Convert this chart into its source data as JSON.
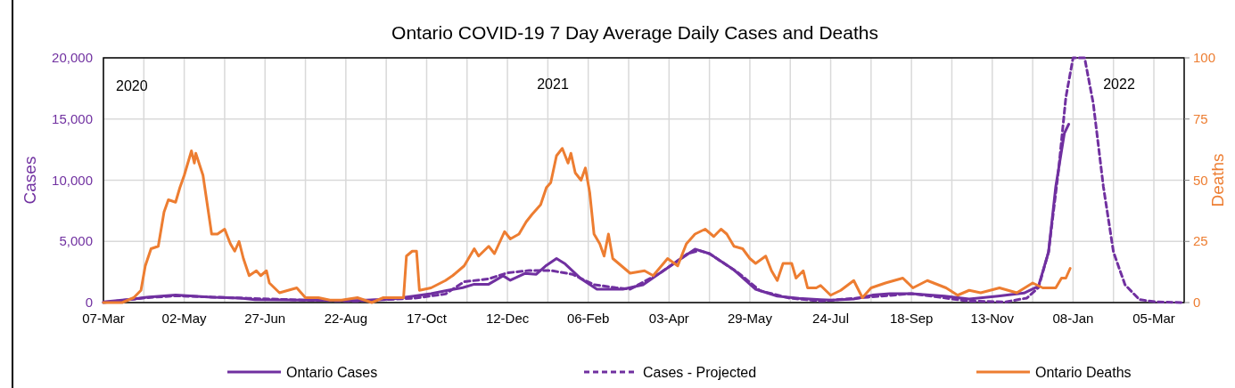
{
  "chart_data": {
    "type": "line",
    "title": "Ontario COVID-19 7 Day Average Daily Cases and Deaths",
    "ylabel": "Cases",
    "y2label": "Deaths",
    "annotations": [
      "2020",
      "2021",
      "2022"
    ],
    "grid": true,
    "legend": "bottom",
    "xlim": [
      "2020-03-07",
      "2022-03-26"
    ],
    "xticks": [
      {
        "value": "2020-03-07",
        "label": "07-Mar"
      },
      {
        "value": "2020-04-04",
        "label": null
      },
      {
        "value": "2020-05-02",
        "label": "02-May"
      },
      {
        "value": "2020-05-30",
        "label": null
      },
      {
        "value": "2020-06-27",
        "label": "27-Jun"
      },
      {
        "value": "2020-07-25",
        "label": null
      },
      {
        "value": "2020-08-22",
        "label": "22-Aug"
      },
      {
        "value": "2020-09-19",
        "label": null
      },
      {
        "value": "2020-10-17",
        "label": "17-Oct"
      },
      {
        "value": "2020-11-14",
        "label": null
      },
      {
        "value": "2020-12-12",
        "label": "12-Dec"
      },
      {
        "value": "2021-01-09",
        "label": null
      },
      {
        "value": "2021-02-06",
        "label": "06-Feb"
      },
      {
        "value": "2021-03-06",
        "label": null
      },
      {
        "value": "2021-04-03",
        "label": "03-Apr"
      },
      {
        "value": "2021-05-01",
        "label": null
      },
      {
        "value": "2021-05-29",
        "label": "29-May"
      },
      {
        "value": "2021-06-26",
        "label": null
      },
      {
        "value": "2021-07-24",
        "label": "24-Jul"
      },
      {
        "value": "2021-08-21",
        "label": null
      },
      {
        "value": "2021-09-18",
        "label": "18-Sep"
      },
      {
        "value": "2021-10-16",
        "label": null
      },
      {
        "value": "2021-11-13",
        "label": "13-Nov"
      },
      {
        "value": "2021-12-11",
        "label": null
      },
      {
        "value": "2022-01-08",
        "label": "08-Jan"
      },
      {
        "value": "2022-02-05",
        "label": null
      },
      {
        "value": "2022-03-05",
        "label": "05-Mar"
      }
    ],
    "ylim": [
      0,
      20000
    ],
    "yticks": [
      {
        "value": 0,
        "label": "0"
      },
      {
        "value": 5000,
        "label": "5,000"
      },
      {
        "value": 10000,
        "label": "10,000"
      },
      {
        "value": 15000,
        "label": "15,000"
      },
      {
        "value": 20000,
        "label": "20,000"
      }
    ],
    "y2lim": [
      0,
      100
    ],
    "y2ticks": [
      0,
      25,
      50,
      75,
      100
    ],
    "series": [
      {
        "name": "Ontario Cases",
        "color": "#7030a0",
        "x": [
          "2020-03-07",
          "2020-03-28",
          "2020-04-06",
          "2020-04-26",
          "2020-05-21",
          "2020-06-10",
          "2020-06-20",
          "2020-07-25",
          "2020-08-29",
          "2020-09-23",
          "2020-10-08",
          "2020-10-20",
          "2020-10-30",
          "2020-11-11",
          "2020-11-19",
          "2020-11-29",
          "2020-12-09",
          "2020-12-14",
          "2020-12-24",
          "2021-01-01",
          "2021-01-08",
          "2021-01-15",
          "2021-01-21",
          "2021-02-01",
          "2021-02-12",
          "2021-02-22",
          "2021-03-02",
          "2021-03-16",
          "2021-03-28",
          "2021-04-09",
          "2021-04-21",
          "2021-05-01",
          "2021-05-18",
          "2021-06-02",
          "2021-06-17",
          "2021-07-02",
          "2021-07-17",
          "2021-07-25",
          "2021-08-09",
          "2021-08-22",
          "2021-09-03",
          "2021-09-18",
          "2021-10-11",
          "2021-10-28",
          "2021-11-17",
          "2021-12-05",
          "2021-12-15",
          "2021-12-22",
          "2021-12-27",
          "2022-01-02",
          "2022-01-05"
        ],
        "values": [
          50,
          290,
          440,
          610,
          440,
          370,
          240,
          200,
          170,
          290,
          530,
          730,
          970,
          1220,
          1500,
          1500,
          2190,
          1820,
          2380,
          2310,
          3040,
          3600,
          3160,
          1940,
          1090,
          1090,
          1090,
          1460,
          2430,
          3400,
          4370,
          4000,
          2670,
          1090,
          530,
          340,
          240,
          200,
          290,
          610,
          730,
          730,
          530,
          290,
          530,
          780,
          1340,
          4130,
          9480,
          13850,
          14580
        ]
      },
      {
        "name": "Cases - Projected",
        "color": "#7030a0",
        "line_style": "dashed",
        "x": [
          "2020-03-07",
          "2020-04-06",
          "2020-04-26",
          "2020-06-15",
          "2020-07-25",
          "2020-08-29",
          "2020-10-08",
          "2020-10-30",
          "2020-11-12",
          "2020-11-29",
          "2020-12-12",
          "2020-12-27",
          "2021-01-11",
          "2021-01-26",
          "2021-02-10",
          "2021-02-25",
          "2021-03-07",
          "2021-03-28",
          "2021-04-16",
          "2021-04-24",
          "2021-05-01",
          "2021-05-21",
          "2021-06-05",
          "2021-06-25",
          "2021-07-17",
          "2021-08-19",
          "2021-09-18",
          "2021-10-28",
          "2021-11-22",
          "2021-12-07",
          "2021-12-15",
          "2021-12-22",
          "2021-12-29",
          "2022-01-03",
          "2022-01-08",
          "2022-01-16",
          "2022-01-22",
          "2022-01-29",
          "2022-02-05",
          "2022-02-13",
          "2022-02-23",
          "2022-03-07",
          "2022-03-26"
        ],
        "values": [
          0,
          400,
          550,
          350,
          200,
          120,
          350,
          700,
          1700,
          1940,
          2430,
          2620,
          2620,
          2310,
          1460,
          1220,
          1090,
          2430,
          4000,
          4250,
          4000,
          2430,
          970,
          370,
          120,
          440,
          730,
          120,
          50,
          370,
          1220,
          4130,
          10900,
          16770,
          20000,
          20000,
          16280,
          9480,
          4130,
          1460,
          240,
          50,
          0
        ]
      },
      {
        "name": "Ontario Deaths",
        "color": "#ed7d31",
        "axis": "y2",
        "x": [
          "2020-03-07",
          "2020-03-20",
          "2020-03-28",
          "2020-04-02",
          "2020-04-05",
          "2020-04-09",
          "2020-04-14",
          "2020-04-18",
          "2020-04-21",
          "2020-04-26",
          "2020-04-29",
          "2020-05-02",
          "2020-05-07",
          "2020-05-09",
          "2020-05-10",
          "2020-05-15",
          "2020-05-19",
          "2020-05-21",
          "2020-05-25",
          "2020-05-30",
          "2020-06-03",
          "2020-06-06",
          "2020-06-09",
          "2020-06-12",
          "2020-06-16",
          "2020-06-21",
          "2020-06-24",
          "2020-06-28",
          "2020-06-30",
          "2020-07-07",
          "2020-07-13",
          "2020-07-19",
          "2020-07-25",
          "2020-08-03",
          "2020-08-11",
          "2020-08-19",
          "2020-08-30",
          "2020-09-09",
          "2020-09-17",
          "2020-10-01",
          "2020-10-03",
          "2020-10-07",
          "2020-10-10",
          "2020-10-12",
          "2020-10-20",
          "2020-10-30",
          "2020-11-04",
          "2020-11-12",
          "2020-11-19",
          "2020-11-22",
          "2020-11-29",
          "2020-12-03",
          "2020-12-10",
          "2020-12-14",
          "2020-12-20",
          "2020-12-25",
          "2020-12-29",
          "2021-01-04",
          "2021-01-08",
          "2021-01-11",
          "2021-01-15",
          "2021-01-19",
          "2021-01-23",
          "2021-01-25",
          "2021-01-28",
          "2021-02-01",
          "2021-02-04",
          "2021-02-07",
          "2021-02-10",
          "2021-02-14",
          "2021-02-17",
          "2021-02-20",
          "2021-02-23",
          "2021-02-27",
          "2021-03-07",
          "2021-03-17",
          "2021-03-23",
          "2021-04-02",
          "2021-04-09",
          "2021-04-15",
          "2021-04-21",
          "2021-04-28",
          "2021-05-04",
          "2021-05-09",
          "2021-05-13",
          "2021-05-18",
          "2021-05-24",
          "2021-05-29",
          "2021-06-02",
          "2021-06-09",
          "2021-06-13",
          "2021-06-17",
          "2021-06-21",
          "2021-06-27",
          "2021-06-30",
          "2021-07-05",
          "2021-07-08",
          "2021-07-14",
          "2021-07-17",
          "2021-07-24",
          "2021-07-31",
          "2021-08-09",
          "2021-08-15",
          "2021-08-21",
          "2021-08-31",
          "2021-09-12",
          "2021-09-19",
          "2021-09-29",
          "2021-10-12",
          "2021-10-20",
          "2021-10-28",
          "2021-11-05",
          "2021-11-18",
          "2021-11-30",
          "2021-12-11",
          "2021-12-18",
          "2021-12-27",
          "2021-12-31",
          "2022-01-03",
          "2022-01-06"
        ],
        "values": [
          0,
          0,
          2,
          5,
          15,
          22,
          23,
          37,
          42,
          41,
          47,
          52,
          62,
          57,
          61,
          52,
          36,
          28,
          28,
          30,
          24,
          21,
          25,
          18,
          11,
          13,
          11,
          13,
          8,
          4,
          5,
          6,
          2,
          2,
          1,
          1,
          2,
          0,
          2,
          2,
          19,
          21,
          21,
          5,
          6,
          9,
          11,
          15,
          22,
          19,
          23,
          20,
          29,
          26,
          28,
          33,
          36,
          40,
          47,
          49,
          60,
          63,
          57,
          61,
          53,
          50,
          55,
          45,
          28,
          24,
          19,
          28,
          18,
          16,
          12,
          13,
          11,
          18,
          15,
          24,
          28,
          30,
          27,
          30,
          28,
          23,
          22,
          18,
          16,
          19,
          13,
          9,
          16,
          16,
          10,
          13,
          6,
          6,
          7,
          3,
          5,
          9,
          2,
          6,
          8,
          10,
          6,
          9,
          6,
          3,
          5,
          4,
          6,
          4,
          8,
          6,
          6,
          10,
          10,
          14
        ]
      }
    ]
  }
}
